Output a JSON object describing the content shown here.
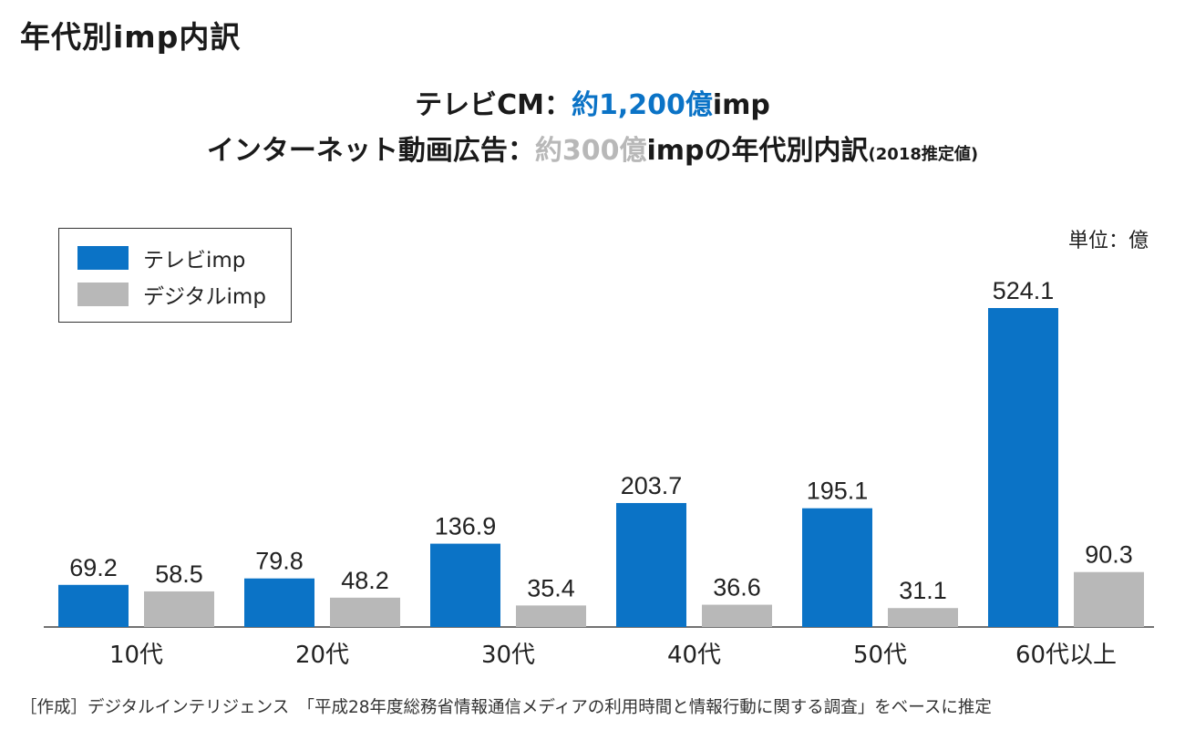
{
  "header": {
    "title": "年代別imp内訳",
    "line1": {
      "prefix": "テレビCM：",
      "highlight": "約1,200億",
      "suffix": "imp"
    },
    "line2": {
      "prefix": "インターネット動画広告：",
      "highlight": "約300億",
      "suffix": "impの年代別内訳",
      "note": "(2018推定値)"
    }
  },
  "unit": "単位：億",
  "colors": {
    "tv": "#0b73c6",
    "digital": "#b8b8b8"
  },
  "chart_data": {
    "type": "bar",
    "title": "年代別imp内訳",
    "xlabel": "",
    "ylabel": "",
    "ylim": [
      0,
      600
    ],
    "legend_position": "top-left",
    "grid": false,
    "categories": [
      "10代",
      "20代",
      "30代",
      "40代",
      "50代",
      "60代以上"
    ],
    "series": [
      {
        "name": "テレビimp",
        "values": [
          69.2,
          79.8,
          136.9,
          203.7,
          195.1,
          524.1
        ]
      },
      {
        "name": "デジタルimp",
        "values": [
          58.5,
          48.2,
          35.4,
          36.6,
          31.1,
          90.3
        ]
      }
    ]
  },
  "footer": "［作成］デジタルインテリジェンス　「平成28年度総務省情報通信メディアの利用時間と情報行動に関する調査」をベースに推定"
}
